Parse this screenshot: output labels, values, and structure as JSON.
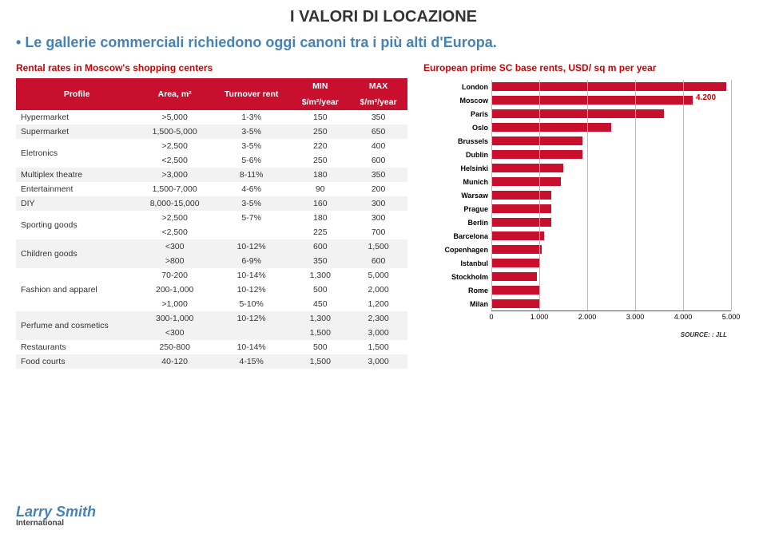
{
  "title": "I VALORI DI LOCAZIONE",
  "subtitle_bullet": "• ",
  "subtitle": "Le gallerie commerciali richiedono oggi canoni tra i più alti d'Europa.",
  "table_caption": "Rental rates in Moscow's shopping centers",
  "chart_caption": "European prime SC base rents, USD/ sq m per year",
  "headers": {
    "profile": "Profile",
    "area": "Area, m²",
    "turnover": "Turnover rent",
    "min": "MIN",
    "max": "MAX",
    "unit": "$/m²/year"
  },
  "rows": [
    {
      "band": "a",
      "cells": [
        {
          "profile": "Hypermarket",
          "area": ">5,000",
          "turnover": "1-3%",
          "min": "150",
          "max": "350"
        }
      ]
    },
    {
      "band": "b",
      "cells": [
        {
          "profile": "Supermarket",
          "area": "1,500-5,000",
          "turnover": "3-5%",
          "min": "250",
          "max": "650"
        }
      ]
    },
    {
      "band": "a",
      "cells": [
        {
          "profile": "Eletronics",
          "area": ">2,500",
          "turnover": "3-5%",
          "min": "220",
          "max": "400"
        },
        {
          "profile": "",
          "area": "<2,500",
          "turnover": "5-6%",
          "min": "250",
          "max": "600"
        }
      ]
    },
    {
      "band": "b",
      "cells": [
        {
          "profile": "Multiplex theatre",
          "area": ">3,000",
          "turnover": "8-11%",
          "min": "180",
          "max": "350"
        }
      ]
    },
    {
      "band": "a",
      "cells": [
        {
          "profile": "Entertainment",
          "area": "1,500-7,000",
          "turnover": "4-6%",
          "min": "90",
          "max": "200"
        }
      ]
    },
    {
      "band": "b",
      "cells": [
        {
          "profile": "DIY",
          "area": "8,000-15,000",
          "turnover": "3-5%",
          "min": "160",
          "max": "300"
        }
      ]
    },
    {
      "band": "a",
      "cells": [
        {
          "profile": "Sporting goods",
          "area": ">2,500",
          "turnover": "5-7%",
          "min": "180",
          "max": "300"
        },
        {
          "profile": "",
          "area": "<2,500",
          "turnover": "",
          "min": "225",
          "max": "700"
        }
      ]
    },
    {
      "band": "b",
      "cells": [
        {
          "profile": "Children goods",
          "area": "<300",
          "turnover": "10-12%",
          "min": "600",
          "max": "1,500"
        },
        {
          "profile": "",
          "area": ">800",
          "turnover": "6-9%",
          "min": "350",
          "max": "600"
        }
      ]
    },
    {
      "band": "a",
      "cells": [
        {
          "profile": "Fashion and apparel",
          "area": "70-200",
          "turnover": "10-14%",
          "min": "1,300",
          "max": "5,000"
        },
        {
          "profile": "",
          "area": "200-1,000",
          "turnover": "10-12%",
          "min": "500",
          "max": "2,000"
        },
        {
          "profile": "",
          "area": ">1,000",
          "turnover": "5-10%",
          "min": "450",
          "max": "1,200"
        }
      ]
    },
    {
      "band": "b",
      "cells": [
        {
          "profile": "Perfume and cosmetics",
          "area": "300-1,000",
          "turnover": "10-12%",
          "min": "1,300",
          "max": "2,300"
        },
        {
          "profile": "",
          "area": "<300",
          "turnover": "",
          "min": "1,500",
          "max": "3,000"
        }
      ]
    },
    {
      "band": "a",
      "cells": [
        {
          "profile": "Restaurants",
          "area": "250-800",
          "turnover": "10-14%",
          "min": "500",
          "max": "1,500"
        }
      ]
    },
    {
      "band": "b",
      "cells": [
        {
          "profile": "Food courts",
          "area": "40-120",
          "turnover": "4-15%",
          "min": "1,500",
          "max": "3,000"
        }
      ]
    }
  ],
  "chart": {
    "x_max": 5000,
    "ticks": [
      0,
      1000,
      2000,
      3000,
      4000,
      5000
    ],
    "tick_labels": [
      "0",
      "1.000",
      "2.000",
      "3.000",
      "4.000",
      "5.000"
    ],
    "bar_color": "#c8102e",
    "highlight_color": "#cc0000",
    "series": [
      {
        "city": "London",
        "value": 4900
      },
      {
        "city": "Moscow",
        "value": 4200,
        "label": "4.200"
      },
      {
        "city": "Paris",
        "value": 3600
      },
      {
        "city": "Oslo",
        "value": 2500
      },
      {
        "city": "Brussels",
        "value": 1900
      },
      {
        "city": "Dublin",
        "value": 1900
      },
      {
        "city": "Helsinki",
        "value": 1500
      },
      {
        "city": "Munich",
        "value": 1450
      },
      {
        "city": "Warsaw",
        "value": 1250
      },
      {
        "city": "Prague",
        "value": 1250
      },
      {
        "city": "Berlin",
        "value": 1250
      },
      {
        "city": "Barcelona",
        "value": 1100
      },
      {
        "city": "Copenhagen",
        "value": 1050
      },
      {
        "city": "Istanbul",
        "value": 1000
      },
      {
        "city": "Stockholm",
        "value": 950
      },
      {
        "city": "Rome",
        "value": 1000
      },
      {
        "city": "Milan",
        "value": 1000
      }
    ]
  },
  "source": "SOURCE: : JLL",
  "logo": {
    "main": "Larry Smith",
    "sub": "International"
  }
}
